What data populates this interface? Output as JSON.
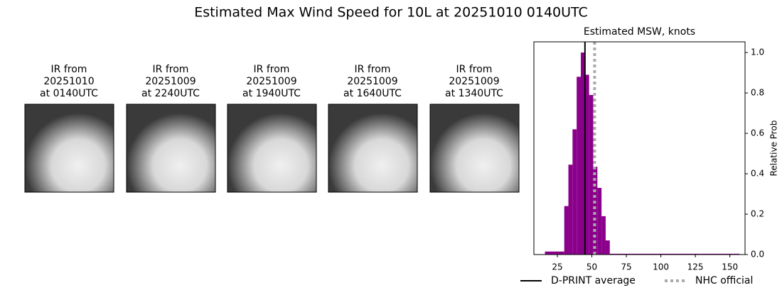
{
  "title": "Estimated Max Wind Speed for 10L at 20251010 0140UTC",
  "panels": [
    {
      "lines": [
        "IR from",
        "20251010",
        "at 0140UTC"
      ]
    },
    {
      "lines": [
        "IR from",
        "20251009",
        "at 2240UTC"
      ]
    },
    {
      "lines": [
        "IR from",
        "20251009",
        "at 1940UTC"
      ]
    },
    {
      "lines": [
        "IR from",
        "20251009",
        "at 1640UTC"
      ]
    },
    {
      "lines": [
        "IR from",
        "20251009",
        "at 1340UTC"
      ]
    }
  ],
  "chart_data": {
    "type": "histogram",
    "title": "Estimated MSW, knots",
    "y_label": "Relative Prob",
    "bins": [
      16,
      30,
      33,
      36,
      39,
      42,
      45,
      48,
      51,
      54,
      57,
      60,
      63,
      157
    ],
    "values": [
      0.015,
      0.24,
      0.445,
      0.62,
      0.88,
      1.0,
      0.89,
      0.79,
      0.435,
      0.33,
      0.19,
      0.07,
      0.004
    ],
    "color": "#8b008b",
    "xlim": [
      8,
      161
    ],
    "xticks": [
      25,
      50,
      75,
      100,
      125,
      150
    ],
    "ylim": [
      0,
      1.053
    ],
    "yticks": [
      {
        "value": 0,
        "label": "0.0"
      },
      0.2,
      0.4,
      0.6,
      0.8,
      {
        "value": 1,
        "label": "1.0"
      }
    ],
    "reference_lines": [
      {
        "name": "D-PRINT average",
        "value": 45,
        "color": "#000000",
        "style": "solid"
      },
      {
        "name": "NHC official",
        "value": 52,
        "color": "#aaaaaa",
        "style": "dotted"
      }
    ]
  }
}
